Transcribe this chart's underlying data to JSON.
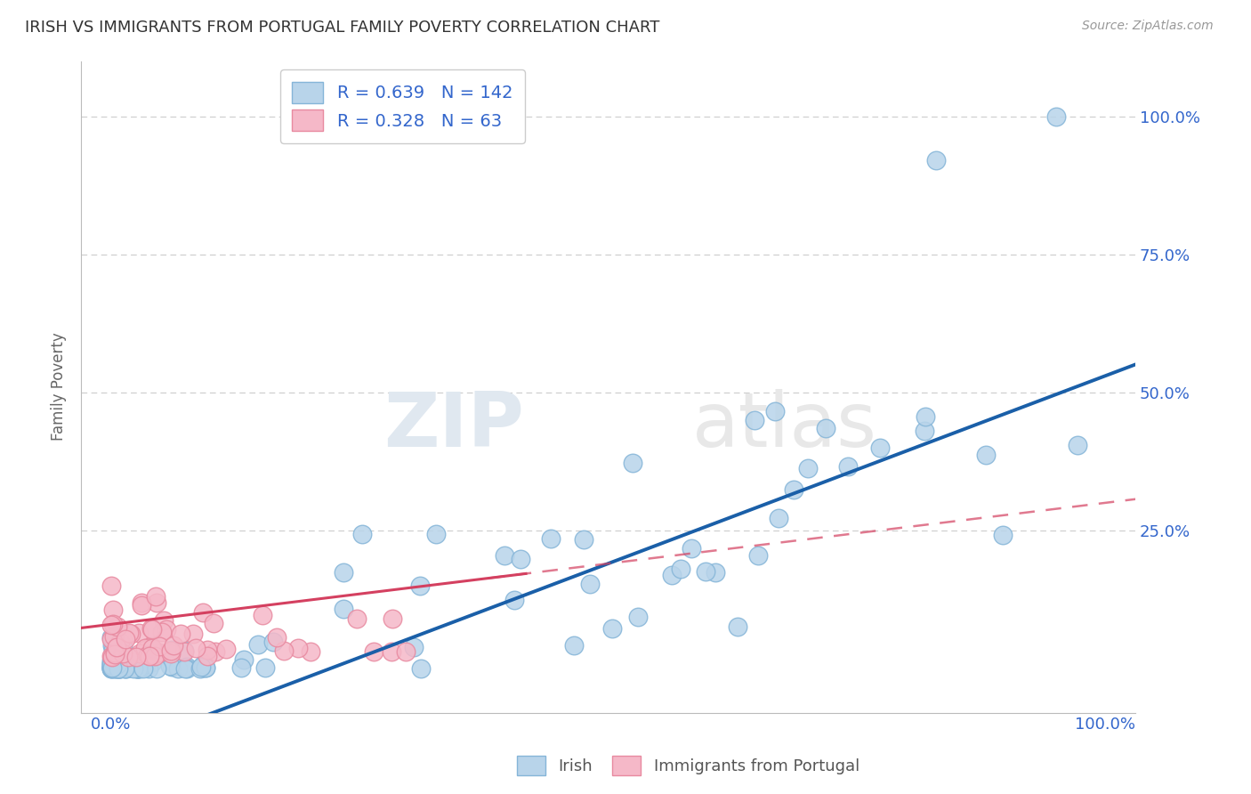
{
  "title": "IRISH VS IMMIGRANTS FROM PORTUGAL FAMILY POVERTY CORRELATION CHART",
  "source": "Source: ZipAtlas.com",
  "ylabel": "Family Poverty",
  "irish_color": "#b8d4ea",
  "portugal_color": "#f5b8c8",
  "irish_edge": "#85b5d8",
  "portugal_edge": "#e88aa0",
  "irish_line_color": "#1a5fa8",
  "portugal_line_color": "#d44060",
  "irish_R": 0.639,
  "irish_N": 142,
  "portugal_R": 0.328,
  "portugal_N": 63,
  "legend_irish": "Irish",
  "legend_portugal": "Immigrants from Portugal",
  "background_color": "#ffffff",
  "grid_color": "#cccccc",
  "title_color": "#333333",
  "axis_color": "#3366cc",
  "watermark_zip": "ZIP",
  "watermark_atlas": "atlas"
}
